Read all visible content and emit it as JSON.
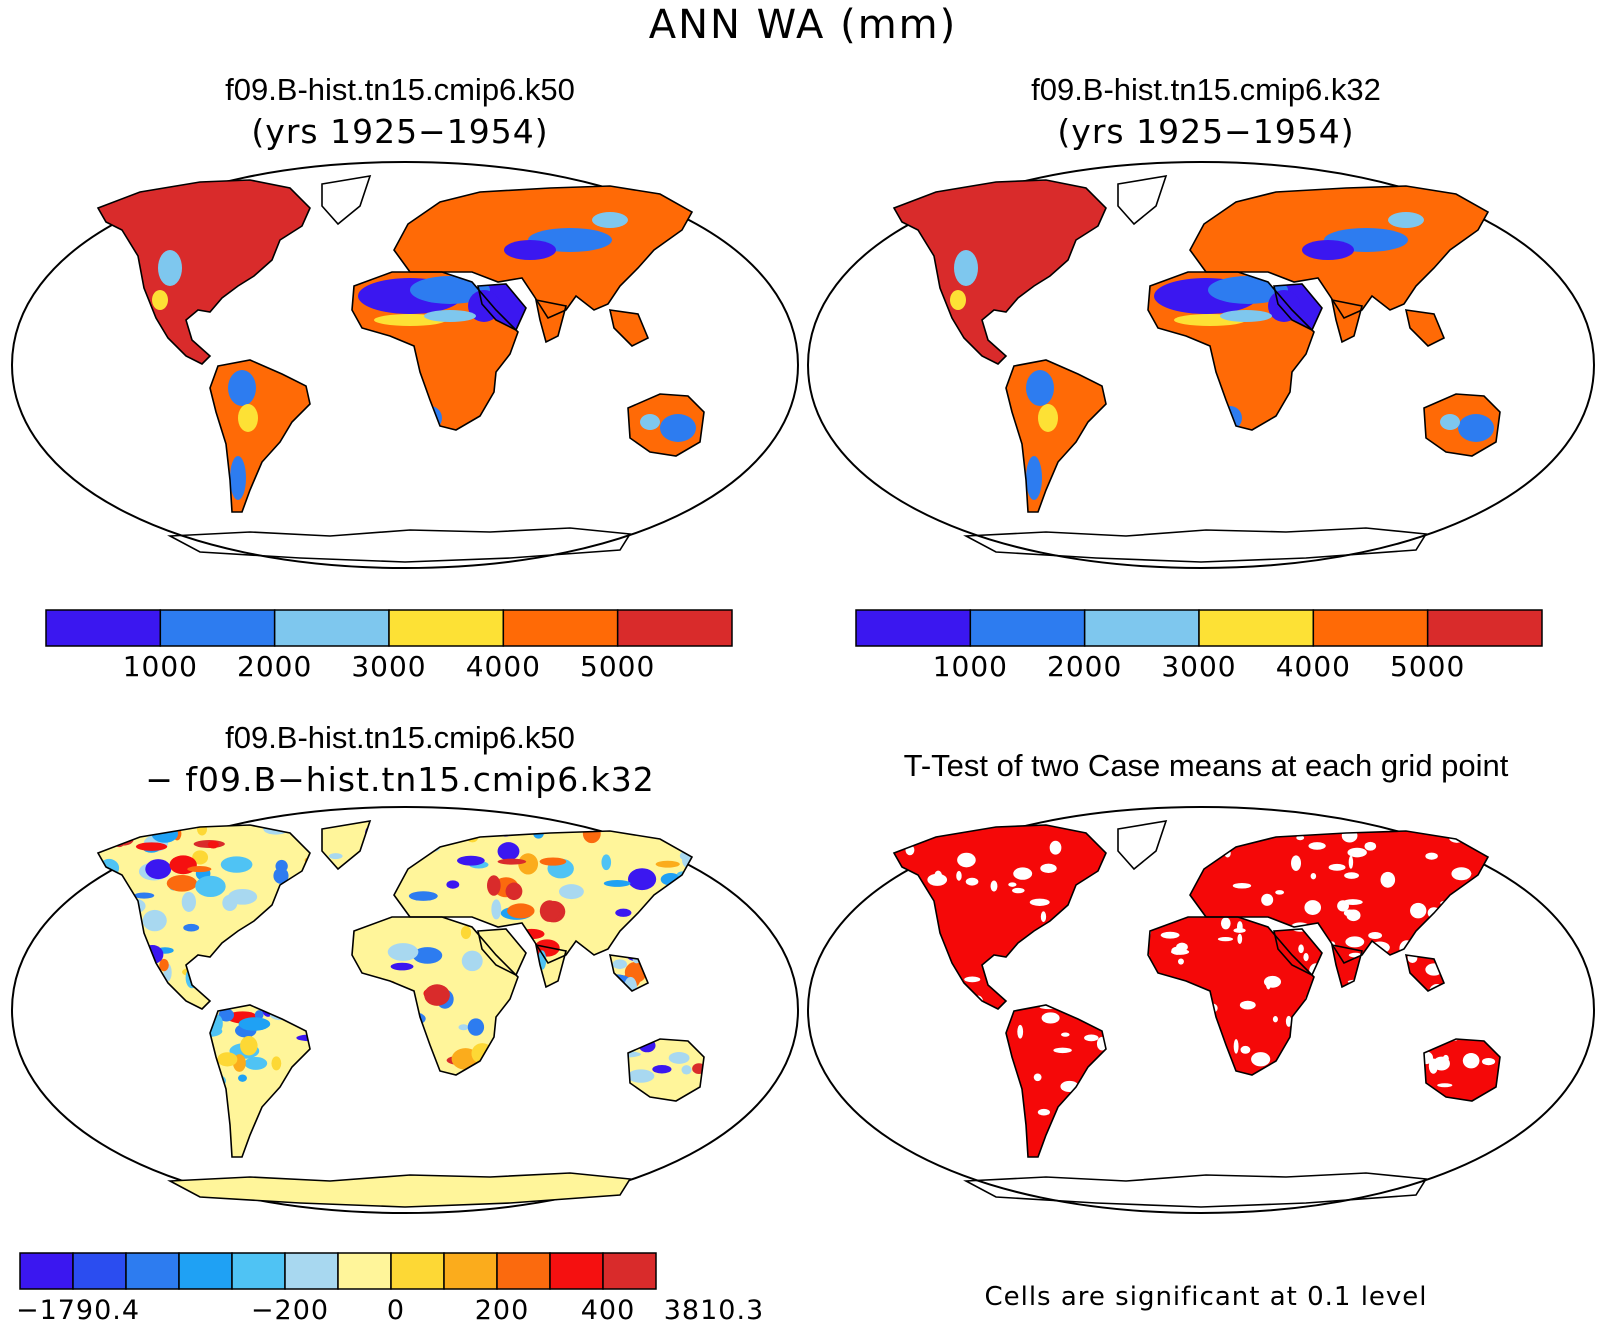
{
  "title": "ANN WA (mm)",
  "colors": {
    "mean_levels": [
      "#3b17f0",
      "#2d7cf0",
      "#7ec7ee",
      "#fde135",
      "#ff6a06",
      "#d92b2b"
    ],
    "diff_levels": [
      "#3b17f0",
      "#2b4df0",
      "#2d7cf0",
      "#1fa1f4",
      "#4fc3f4",
      "#a8d8f0",
      "#fff59a",
      "#fdd835",
      "#fbac1c",
      "#fb6a0e",
      "#f51010",
      "#d92b2b"
    ],
    "significant": "#f50808",
    "land_outline": "#000000"
  },
  "panels": [
    {
      "id": "case1",
      "title": "f09.B-hist.tn15.cmip6.k50",
      "subtitle": "(yrs 1925−1954)",
      "colorbar": {
        "tick_labels": [
          "1000",
          "2000",
          "3000",
          "4000",
          "5000"
        ]
      }
    },
    {
      "id": "case2",
      "title": "f09.B-hist.tn15.cmip6.k32",
      "subtitle": "(yrs 1925−1954)",
      "colorbar": {
        "tick_labels": [
          "1000",
          "2000",
          "3000",
          "4000",
          "5000"
        ]
      }
    },
    {
      "id": "difference",
      "title": "f09.B-hist.tn15.cmip6.k50",
      "subtitle": "− f09.B−hist.tn15.cmip6.k32",
      "colorbar": {
        "tick_labels": [
          "−1790.4",
          "−200",
          "0",
          "200",
          "400",
          "3810.3"
        ]
      }
    },
    {
      "id": "ttest",
      "title": "T-Test of two Case means at each grid point",
      "note": "Cells are significant at 0.1 level"
    }
  ]
}
